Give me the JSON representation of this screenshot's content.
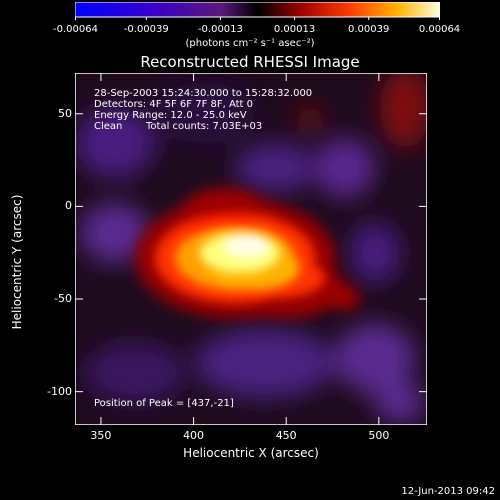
{
  "colorbar": {
    "ticks": [
      "-0.00064",
      "-0.00039",
      "-0.00013",
      "0.00013",
      "0.00039",
      "0.00064"
    ],
    "tick_values": [
      -0.00064,
      -0.00039,
      -0.00013,
      0.00013,
      0.00039,
      0.00064
    ],
    "unit_label": "(photons cm⁻² s⁻¹ asec⁻²)",
    "range": [
      -0.00064,
      0.00064
    ]
  },
  "chart_data": {
    "type": "heatmap",
    "title": "Reconstructed RHESSI Image",
    "xlabel": "Heliocentric X (arcsec)",
    "ylabel": "Heliocentric Y (arcsec)",
    "xlim": [
      336,
      526
    ],
    "ylim": [
      -118,
      72
    ],
    "xticks": [
      350,
      400,
      450,
      500
    ],
    "yticks": [
      50,
      0,
      -50,
      -100
    ],
    "peak": [
      437,
      -21
    ],
    "annotations": {
      "time": "28-Sep-2003 15:24:30.000 to 15:28:32.000",
      "detectors": "Detectors: 4F 5F 6F 7F 8F, Att 0",
      "energy": "Energy Range: 12.0 - 25.0 keV",
      "clean": "Clean",
      "counts": "Total counts: 7.03E+03",
      "peak_text": "Position of Peak = [437,-21]"
    }
  },
  "timestamp": "12-Jun-2013 09:42"
}
